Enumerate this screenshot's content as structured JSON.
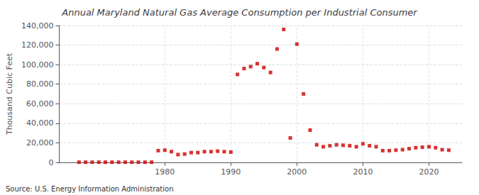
{
  "chart_data": {
    "type": "scatter",
    "title": "Annual Maryland Natural Gas Average Consumption per Industrial Consumer",
    "ylabel": "Thousand Cubic Feet",
    "annotations": [
      "Source: U.S. Energy Information Administration"
    ],
    "x": [
      1967,
      1968,
      1969,
      1970,
      1971,
      1972,
      1973,
      1974,
      1975,
      1976,
      1977,
      1978,
      1979,
      1980,
      1981,
      1982,
      1983,
      1984,
      1985,
      1986,
      1987,
      1988,
      1989,
      1990,
      1991,
      1992,
      1993,
      1994,
      1995,
      1996,
      1997,
      1998,
      1999,
      2000,
      2001,
      2002,
      2003,
      2004,
      2005,
      2006,
      2007,
      2008,
      2009,
      2010,
      2011,
      2012,
      2013,
      2014,
      2015,
      2016,
      2017,
      2018,
      2019,
      2020,
      2021,
      2022,
      2023
    ],
    "values": [
      200,
      200,
      200,
      200,
      200,
      200,
      200,
      200,
      200,
      200,
      200,
      200,
      12000,
      12500,
      11000,
      8000,
      8500,
      10000,
      10000,
      11000,
      11000,
      11500,
      11000,
      10500,
      90000,
      96000,
      98000,
      101000,
      97000,
      92000,
      116000,
      136000,
      25000,
      121000,
      70000,
      33000,
      18000,
      16000,
      17000,
      18000,
      17500,
      17000,
      16000,
      19000,
      17000,
      16000,
      12000,
      12000,
      12500,
      13000,
      14000,
      15000,
      15500,
      16000,
      15000,
      13000,
      12500
    ],
    "color": "#cc0000",
    "marker": "square",
    "xlim": [
      1964,
      2025
    ],
    "ylim": [
      0,
      140000
    ],
    "xticks": [
      1980,
      1990,
      2000,
      2010,
      2020
    ],
    "yticks": [
      0,
      {
        "value": 20000,
        "label": "20,000"
      },
      {
        "value": 40000,
        "label": "40,000"
      },
      {
        "value": 60000,
        "label": "60,000"
      },
      {
        "value": 80000,
        "label": "80,000"
      },
      {
        "value": 100000,
        "label": "100,000"
      },
      {
        "value": 120000,
        "label": "120,000"
      },
      {
        "value": 140000,
        "label": "140,000"
      }
    ],
    "grid": true
  }
}
